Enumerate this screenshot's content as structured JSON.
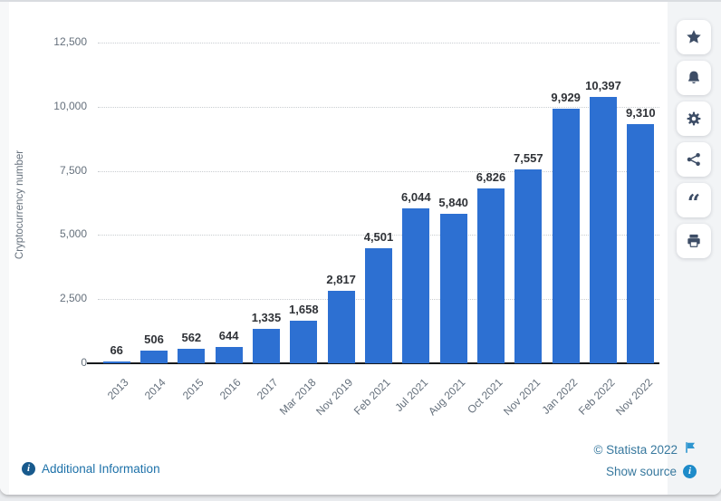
{
  "chart_data": {
    "type": "bar",
    "title": "",
    "categories": [
      "2013",
      "2014",
      "2015",
      "2016",
      "2017",
      "Mar 2018",
      "Nov 2019",
      "Feb 2021",
      "Jul 2021",
      "Aug 2021",
      "Oct 2021",
      "Nov 2021",
      "Jan 2022",
      "Feb 2022",
      "Nov 2022"
    ],
    "values": [
      66,
      506,
      562,
      644,
      1335,
      1658,
      2817,
      4501,
      6044,
      5840,
      6826,
      7557,
      9929,
      10397,
      9310
    ],
    "value_labels": [
      "66",
      "506",
      "562",
      "644",
      "1,335",
      "1,658",
      "2,817",
      "4,501",
      "6,044",
      "5,840",
      "6,826",
      "7,557",
      "9,929",
      "10,397",
      "9,310"
    ],
    "xlabel": "",
    "ylabel": "Cryptocurrency number",
    "y_ticks": [
      "0",
      "2,500",
      "5,000",
      "7,500",
      "10,000",
      "12,500"
    ],
    "ylim": [
      0,
      12500
    ],
    "grid": "horizontal-dotted",
    "legend": "none",
    "bar_color": "#2d70d2"
  },
  "toolbar": {
    "buttons": [
      {
        "name": "favorite",
        "icon": "star-icon"
      },
      {
        "name": "notifications",
        "icon": "bell-icon"
      },
      {
        "name": "settings",
        "icon": "gear-icon"
      },
      {
        "name": "share",
        "icon": "share-icon"
      },
      {
        "name": "cite",
        "icon": "quote-icon"
      },
      {
        "name": "print",
        "icon": "printer-icon"
      }
    ]
  },
  "footer": {
    "additional_info_label": "Additional Information",
    "copyright": "© Statista 2022",
    "show_source_label": "Show source"
  },
  "colors": {
    "bar_blue": "#2d70d2",
    "icon_navy": "#3d4d66",
    "link_blue": "#1d71a9",
    "footer_blue": "#37789e",
    "flag_blue": "#2f96d0",
    "grid_gray": "#c9cdd1"
  }
}
